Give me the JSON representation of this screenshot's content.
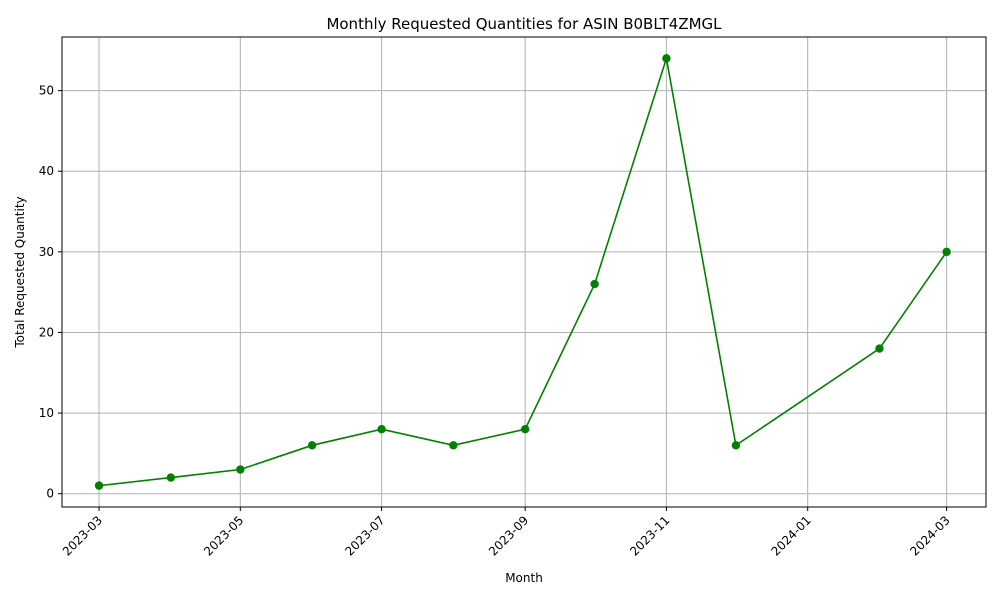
{
  "chart_data": {
    "type": "line",
    "title": "Monthly Requested Quantities for ASIN B0BLT4ZMGL",
    "xlabel": "Month",
    "ylabel": "Total Requested Quantity",
    "x": [
      "2023-03-01",
      "2023-04-01",
      "2023-05-01",
      "2023-06-01",
      "2023-07-01",
      "2023-08-01",
      "2023-09-01",
      "2023-10-01",
      "2023-11-01",
      "2023-12-01",
      "2024-02-01",
      "2024-03-01"
    ],
    "series": [
      {
        "values": [
          1,
          2,
          3,
          6,
          8,
          6,
          8,
          26,
          54,
          6,
          18,
          30
        ],
        "color": "#008000",
        "marker": "circle"
      }
    ],
    "x_ticks": [
      "2023-03",
      "2023-05",
      "2023-07",
      "2023-09",
      "2023-11",
      "2024-01",
      "2024-03"
    ],
    "y_ticks": [
      0,
      10,
      20,
      30,
      40,
      50
    ],
    "xlim": [
      "2023-02-13",
      "2024-03-18"
    ],
    "ylim": [
      -1.65,
      56.65
    ],
    "grid": true,
    "x_tick_rotation": 45
  }
}
